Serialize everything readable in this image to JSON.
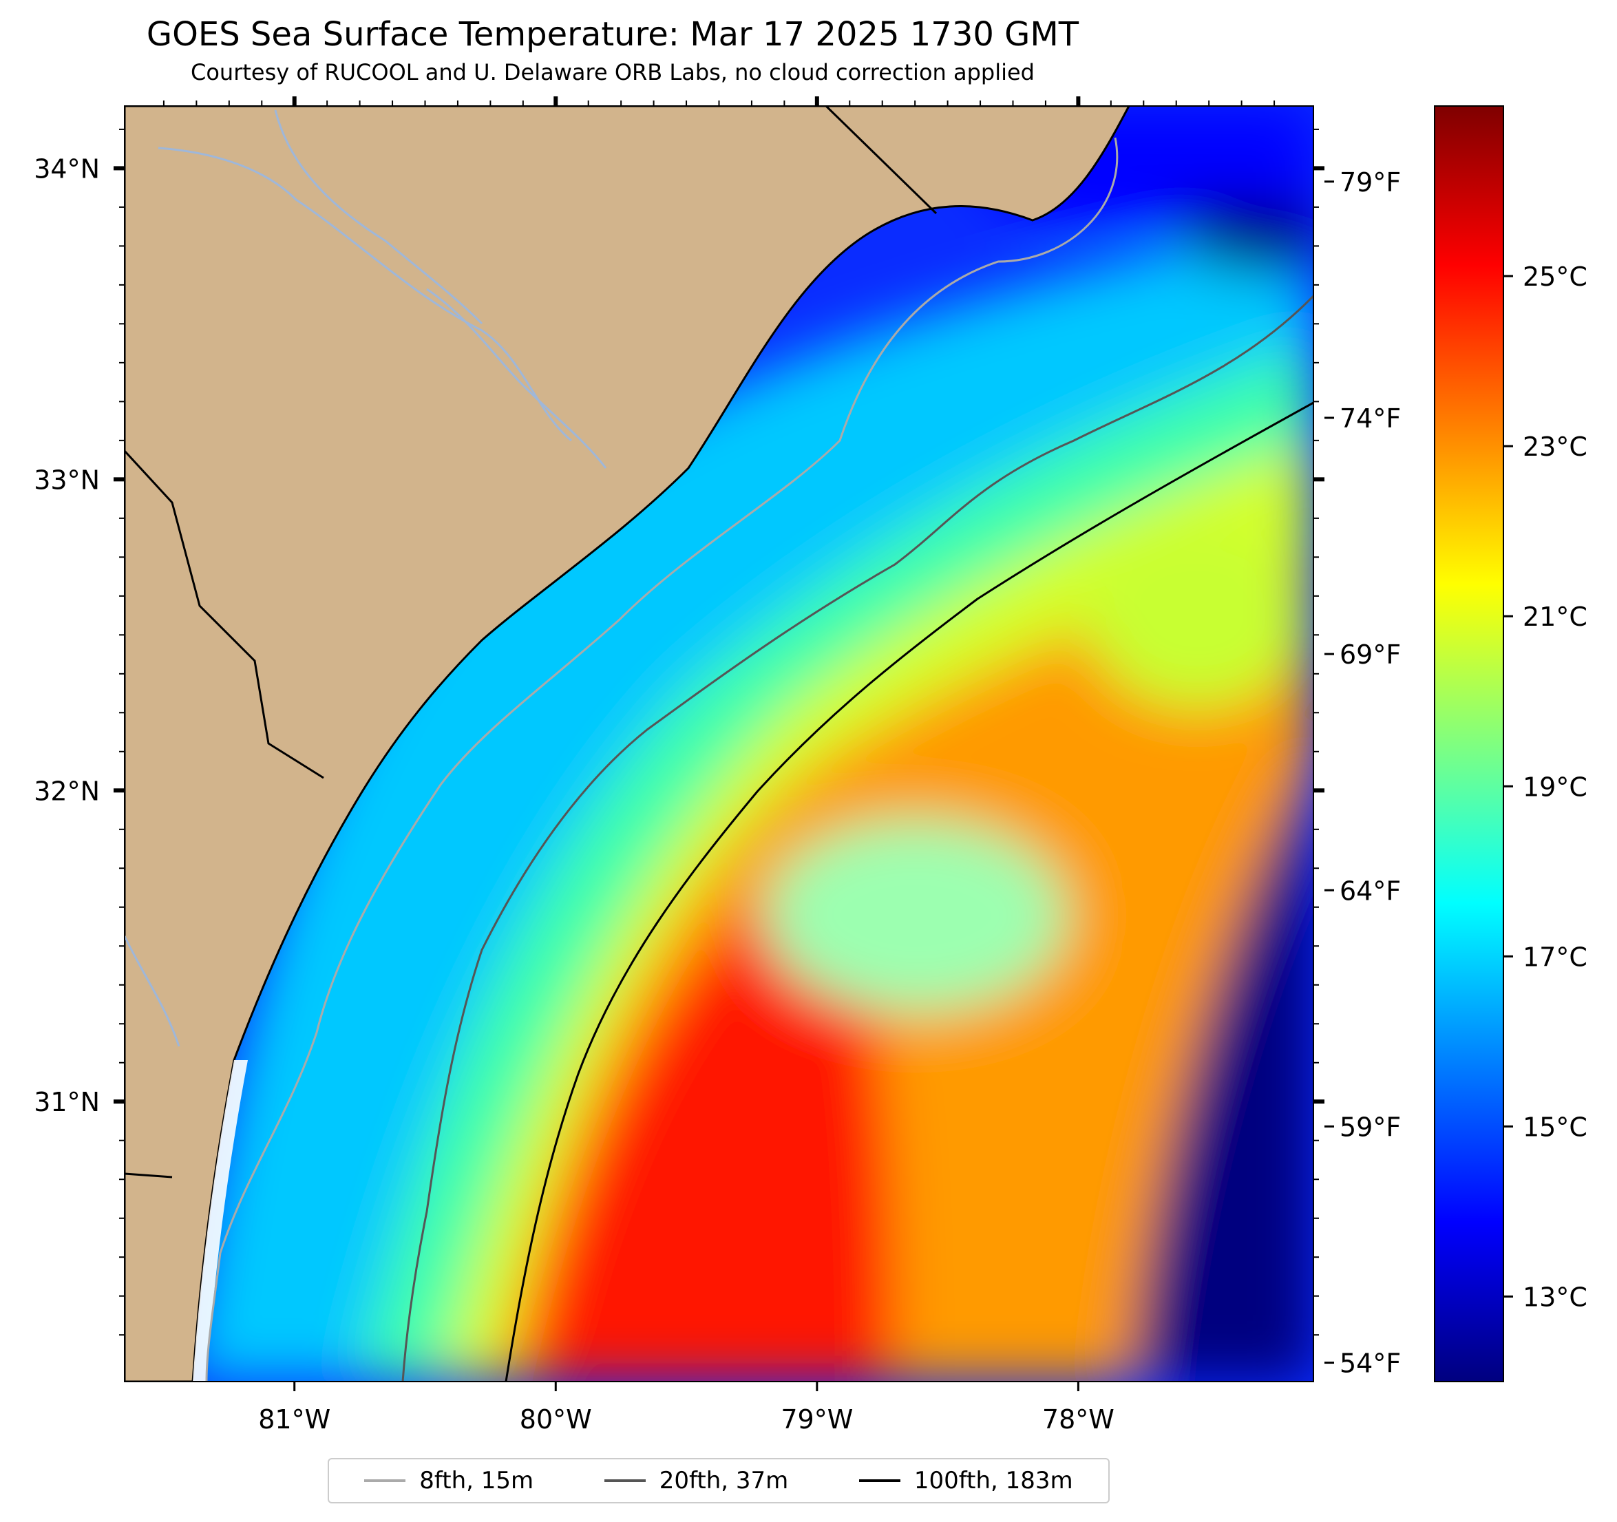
{
  "title": "GOES Sea Surface Temperature: Mar 17 2025 1730 GMT",
  "subtitle": "Courtesy of RUCOOL and U. Delaware ORB Labs, no cloud correction applied",
  "map": {
    "land_color": "#d2b48c",
    "lat_range": [
      30.1,
      34.2
    ],
    "lon_range": [
      -81.65,
      -77.1
    ],
    "lat_ticks": [
      {
        "value": 34,
        "label": "34°N"
      },
      {
        "value": 33,
        "label": "33°N"
      },
      {
        "value": 32,
        "label": "32°N"
      },
      {
        "value": 31,
        "label": "31°N"
      }
    ],
    "lon_ticks": [
      {
        "value": -81,
        "label": "81°W"
      },
      {
        "value": -80,
        "label": "80°W"
      },
      {
        "value": -79,
        "label": "79°W"
      },
      {
        "value": -78,
        "label": "78°W"
      }
    ],
    "fahrenheit_ticks": [
      {
        "value": 79,
        "label": "79°F"
      },
      {
        "value": 74,
        "label": "74°F"
      },
      {
        "value": 69,
        "label": "69°F"
      },
      {
        "value": 64,
        "label": "64°F"
      },
      {
        "value": 59,
        "label": "59°F"
      },
      {
        "value": 54,
        "label": "54°F"
      }
    ]
  },
  "colorbar": {
    "colormap": "jet",
    "range_c": [
      12.0,
      27.0
    ],
    "ticks": [
      {
        "value": 25,
        "label": "25°C"
      },
      {
        "value": 23,
        "label": "23°C"
      },
      {
        "value": 21,
        "label": "21°C"
      },
      {
        "value": 19,
        "label": "19°C"
      },
      {
        "value": 17,
        "label": "17°C"
      },
      {
        "value": 15,
        "label": "15°C"
      },
      {
        "value": 13,
        "label": "13°C"
      }
    ]
  },
  "legend": [
    {
      "label": "8fth, 15m",
      "color": "#aaaaaa"
    },
    {
      "label": "20fth, 37m",
      "color": "#555555"
    },
    {
      "label": "100fth, 183m",
      "color": "#000000"
    }
  ]
}
